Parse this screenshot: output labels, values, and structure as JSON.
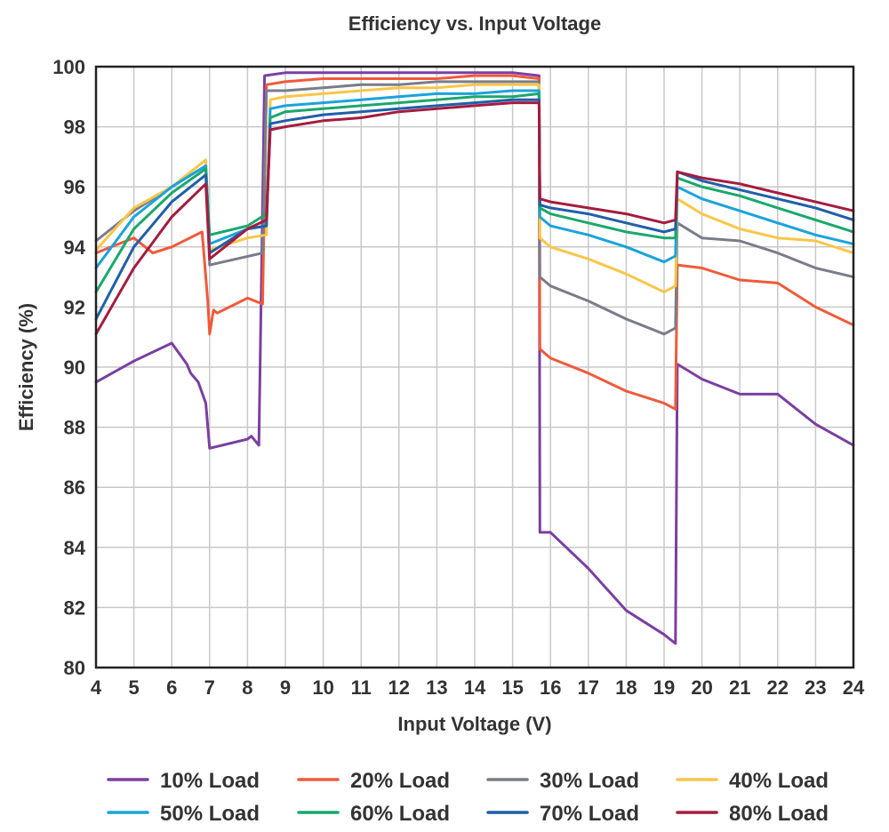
{
  "chart_data": {
    "type": "line",
    "title": "Efficiency vs. Input Voltage",
    "xlabel": "Input Voltage (V)",
    "ylabel": "Efficiency (%)",
    "xlim": [
      4,
      24
    ],
    "ylim": [
      80,
      100
    ],
    "xticks": [
      4,
      5,
      6,
      7,
      8,
      9,
      10,
      11,
      12,
      13,
      14,
      15,
      16,
      17,
      18,
      19,
      20,
      21,
      22,
      23,
      24
    ],
    "yticks": [
      80,
      82,
      84,
      86,
      88,
      90,
      92,
      94,
      96,
      98,
      100
    ],
    "grid": true,
    "legend_position": "bottom",
    "series": [
      {
        "name": "10% Load",
        "color": "#7b3fa0",
        "x": [
          4,
          5,
          6,
          6.4,
          6.5,
          6.7,
          6.9,
          7.0,
          8.0,
          8.1,
          8.3,
          8.45,
          9,
          10,
          11,
          12,
          13,
          14,
          15,
          15.7,
          15.72,
          16,
          17,
          18,
          19,
          19.3,
          19.35,
          20,
          21,
          22,
          23,
          24
        ],
        "y": [
          89.5,
          90.2,
          90.8,
          90.1,
          89.8,
          89.5,
          88.8,
          87.3,
          87.6,
          87.7,
          87.4,
          99.7,
          99.8,
          99.8,
          99.8,
          99.8,
          99.8,
          99.8,
          99.8,
          99.7,
          84.5,
          84.5,
          83.3,
          81.9,
          81.1,
          80.8,
          90.1,
          89.6,
          89.1,
          89.1,
          88.1,
          87.4
        ]
      },
      {
        "name": "20% Load",
        "color": "#f05a3a",
        "x": [
          4,
          5,
          5.5,
          6,
          6.8,
          6.95,
          7.0,
          7.1,
          7.2,
          8.0,
          8.4,
          8.5,
          9,
          10,
          11,
          12,
          13,
          14,
          15,
          15.7,
          15.72,
          16,
          17,
          18,
          19,
          19.3,
          19.35,
          20,
          21,
          22,
          23,
          24
        ],
        "y": [
          93.8,
          94.3,
          93.8,
          94.0,
          94.5,
          92.2,
          91.1,
          91.9,
          91.8,
          92.3,
          92.1,
          99.4,
          99.5,
          99.6,
          99.6,
          99.6,
          99.6,
          99.7,
          99.7,
          99.6,
          90.6,
          90.3,
          89.8,
          89.2,
          88.8,
          88.6,
          93.4,
          93.3,
          92.9,
          92.8,
          92.0,
          91.4
        ]
      },
      {
        "name": "30% Load",
        "color": "#7a7d87",
        "x": [
          4,
          5,
          6,
          6.9,
          7.0,
          8.4,
          8.5,
          9,
          10,
          11,
          12,
          13,
          14,
          15,
          15.7,
          15.72,
          16,
          17,
          18,
          19,
          19.3,
          19.35,
          20,
          21,
          22,
          23,
          24
        ],
        "y": [
          94.2,
          95.2,
          96.0,
          96.7,
          93.4,
          93.8,
          99.2,
          99.2,
          99.3,
          99.4,
          99.4,
          99.5,
          99.5,
          99.5,
          99.5,
          93.0,
          92.7,
          92.2,
          91.6,
          91.1,
          91.3,
          94.8,
          94.3,
          94.2,
          93.8,
          93.3,
          93.0
        ]
      },
      {
        "name": "40% Load",
        "color": "#f9c649",
        "x": [
          4,
          5,
          6,
          6.9,
          7.0,
          8.0,
          8.5,
          8.6,
          9,
          10,
          11,
          12,
          13,
          14,
          15,
          15.7,
          15.72,
          16,
          17,
          18,
          19,
          19.3,
          19.35,
          20,
          21,
          22,
          23,
          24
        ],
        "y": [
          93.9,
          95.3,
          96.0,
          96.9,
          93.9,
          94.3,
          94.4,
          98.9,
          99.0,
          99.1,
          99.2,
          99.3,
          99.3,
          99.4,
          99.4,
          99.4,
          94.3,
          94.0,
          93.6,
          93.1,
          92.5,
          92.7,
          95.6,
          95.1,
          94.6,
          94.3,
          94.2,
          93.8
        ]
      },
      {
        "name": "50% Load",
        "color": "#1aa3dc",
        "x": [
          4,
          5,
          6,
          6.9,
          7.0,
          8.0,
          8.5,
          8.6,
          9,
          10,
          11,
          12,
          13,
          14,
          15,
          15.7,
          15.72,
          16,
          17,
          18,
          19,
          19.3,
          19.35,
          20,
          21,
          22,
          23,
          24
        ],
        "y": [
          93.3,
          95.0,
          96.0,
          96.7,
          94.1,
          94.6,
          94.7,
          98.6,
          98.7,
          98.8,
          98.9,
          99.0,
          99.1,
          99.1,
          99.2,
          99.2,
          95.0,
          94.7,
          94.4,
          94.0,
          93.5,
          93.7,
          96.0,
          95.6,
          95.2,
          94.8,
          94.4,
          94.1
        ]
      },
      {
        "name": "60% Load",
        "color": "#1aa86c",
        "x": [
          4,
          5,
          6,
          6.9,
          7.0,
          8.0,
          8.5,
          8.6,
          9,
          10,
          11,
          12,
          13,
          14,
          15,
          15.7,
          15.72,
          16,
          17,
          18,
          19,
          19.3,
          19.35,
          20,
          21,
          22,
          23,
          24
        ],
        "y": [
          92.5,
          94.6,
          95.8,
          96.6,
          94.4,
          94.7,
          95.1,
          98.3,
          98.5,
          98.6,
          98.7,
          98.8,
          98.9,
          99.0,
          99.0,
          99.1,
          95.3,
          95.1,
          94.8,
          94.5,
          94.3,
          94.3,
          96.3,
          96.0,
          95.7,
          95.3,
          94.9,
          94.5
        ]
      },
      {
        "name": "70% Load",
        "color": "#1f5fa8",
        "x": [
          4,
          5,
          6,
          6.9,
          7.0,
          8.0,
          8.5,
          8.6,
          9,
          10,
          11,
          12,
          13,
          14,
          15,
          15.7,
          15.72,
          16,
          17,
          18,
          19,
          19.3,
          19.35,
          20,
          21,
          22,
          23,
          24
        ],
        "y": [
          91.6,
          94.0,
          95.5,
          96.4,
          93.8,
          94.6,
          94.7,
          98.1,
          98.2,
          98.4,
          98.5,
          98.6,
          98.7,
          98.8,
          98.9,
          98.9,
          95.4,
          95.3,
          95.1,
          94.8,
          94.5,
          94.6,
          96.5,
          96.2,
          95.9,
          95.6,
          95.3,
          94.9
        ]
      },
      {
        "name": "80% Load",
        "color": "#a51c3e",
        "x": [
          4,
          5,
          6,
          6.9,
          7.0,
          8.0,
          8.5,
          8.6,
          9,
          10,
          11,
          12,
          13,
          14,
          15,
          15.7,
          15.72,
          16,
          17,
          18,
          19,
          19.3,
          19.35,
          20,
          21,
          22,
          23,
          24
        ],
        "y": [
          91.1,
          93.3,
          95.0,
          96.1,
          93.6,
          94.6,
          94.9,
          97.9,
          98.0,
          98.2,
          98.3,
          98.5,
          98.6,
          98.7,
          98.8,
          98.8,
          95.6,
          95.5,
          95.3,
          95.1,
          94.8,
          94.9,
          96.5,
          96.3,
          96.1,
          95.8,
          95.5,
          95.2
        ]
      }
    ]
  }
}
